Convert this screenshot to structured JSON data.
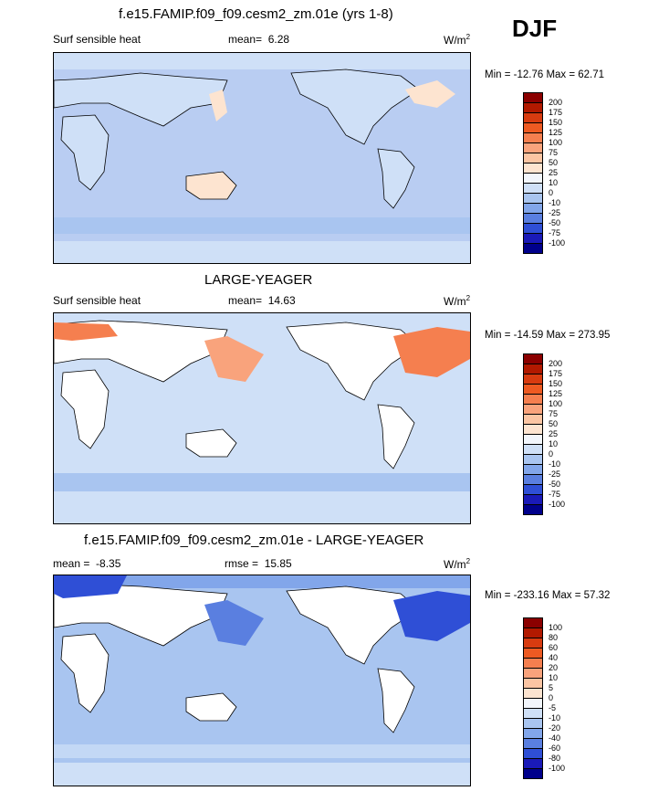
{
  "season": "DJF",
  "panels": [
    {
      "id": "model",
      "title": "f.e15.FAMIP.f09_f09.cesm2_zm.01e (yrs 1-8)",
      "left_label": "Surf sensible heat",
      "stat_label": "mean=",
      "stat_value": "6.28",
      "stat2_label": "",
      "stat2_value": "",
      "units": "W/m",
      "units_sup": "2",
      "minmax": "Min = -12.76 Max =  62.71",
      "colorbar": {
        "levels": [
          "200",
          "175",
          "150",
          "125",
          "100",
          "75",
          "50",
          "25",
          "10",
          "0",
          "-10",
          "-25",
          "-50",
          "-75",
          "-100"
        ],
        "colors": [
          "#8b0000",
          "#b21900",
          "#d83b10",
          "#ee5a22",
          "#f57f4f",
          "#f9a37c",
          "#fbc5a3",
          "#fde4d0",
          "#f2f6fc",
          "#cfe0f7",
          "#a9c5f0",
          "#82a6ea",
          "#5a7fe0",
          "#2f4fd6",
          "#1a1ab8",
          "#00008b"
        ]
      }
    },
    {
      "id": "obs",
      "title": "LARGE-YEAGER",
      "left_label": "Surf sensible heat",
      "stat_label": "mean=",
      "stat_value": "14.63",
      "stat2_label": "",
      "stat2_value": "",
      "units": "W/m",
      "units_sup": "2",
      "minmax": "Min = -14.59 Max = 273.95",
      "colorbar": {
        "levels": [
          "200",
          "175",
          "150",
          "125",
          "100",
          "75",
          "50",
          "25",
          "10",
          "0",
          "-10",
          "-25",
          "-50",
          "-75",
          "-100"
        ],
        "colors": [
          "#8b0000",
          "#b21900",
          "#d83b10",
          "#ee5a22",
          "#f57f4f",
          "#f9a37c",
          "#fbc5a3",
          "#fde4d0",
          "#f2f6fc",
          "#cfe0f7",
          "#a9c5f0",
          "#82a6ea",
          "#5a7fe0",
          "#2f4fd6",
          "#1a1ab8",
          "#00008b"
        ]
      }
    },
    {
      "id": "diff",
      "title": "f.e15.FAMIP.f09_f09.cesm2_zm.01e - LARGE-YEAGER",
      "left_label": "mean =",
      "stat_label": "",
      "stat_value": "-8.35",
      "stat2_label": "rmse =",
      "stat2_value": "15.85",
      "units": "W/m",
      "units_sup": "2",
      "minmax": "Min = -233.16 Max =  57.32",
      "colorbar": {
        "levels": [
          "100",
          "80",
          "60",
          "40",
          "20",
          "10",
          "5",
          "0",
          "-5",
          "-10",
          "-20",
          "-40",
          "-60",
          "-80",
          "-100"
        ],
        "colors": [
          "#8b0000",
          "#b21900",
          "#d83b10",
          "#ee5a22",
          "#f57f4f",
          "#f9a37c",
          "#fbc5a3",
          "#fde4d0",
          "#f2f6fc",
          "#cfe0f7",
          "#a9c5f0",
          "#82a6ea",
          "#5a7fe0",
          "#2f4fd6",
          "#1a1ab8",
          "#00008b"
        ]
      }
    }
  ]
}
